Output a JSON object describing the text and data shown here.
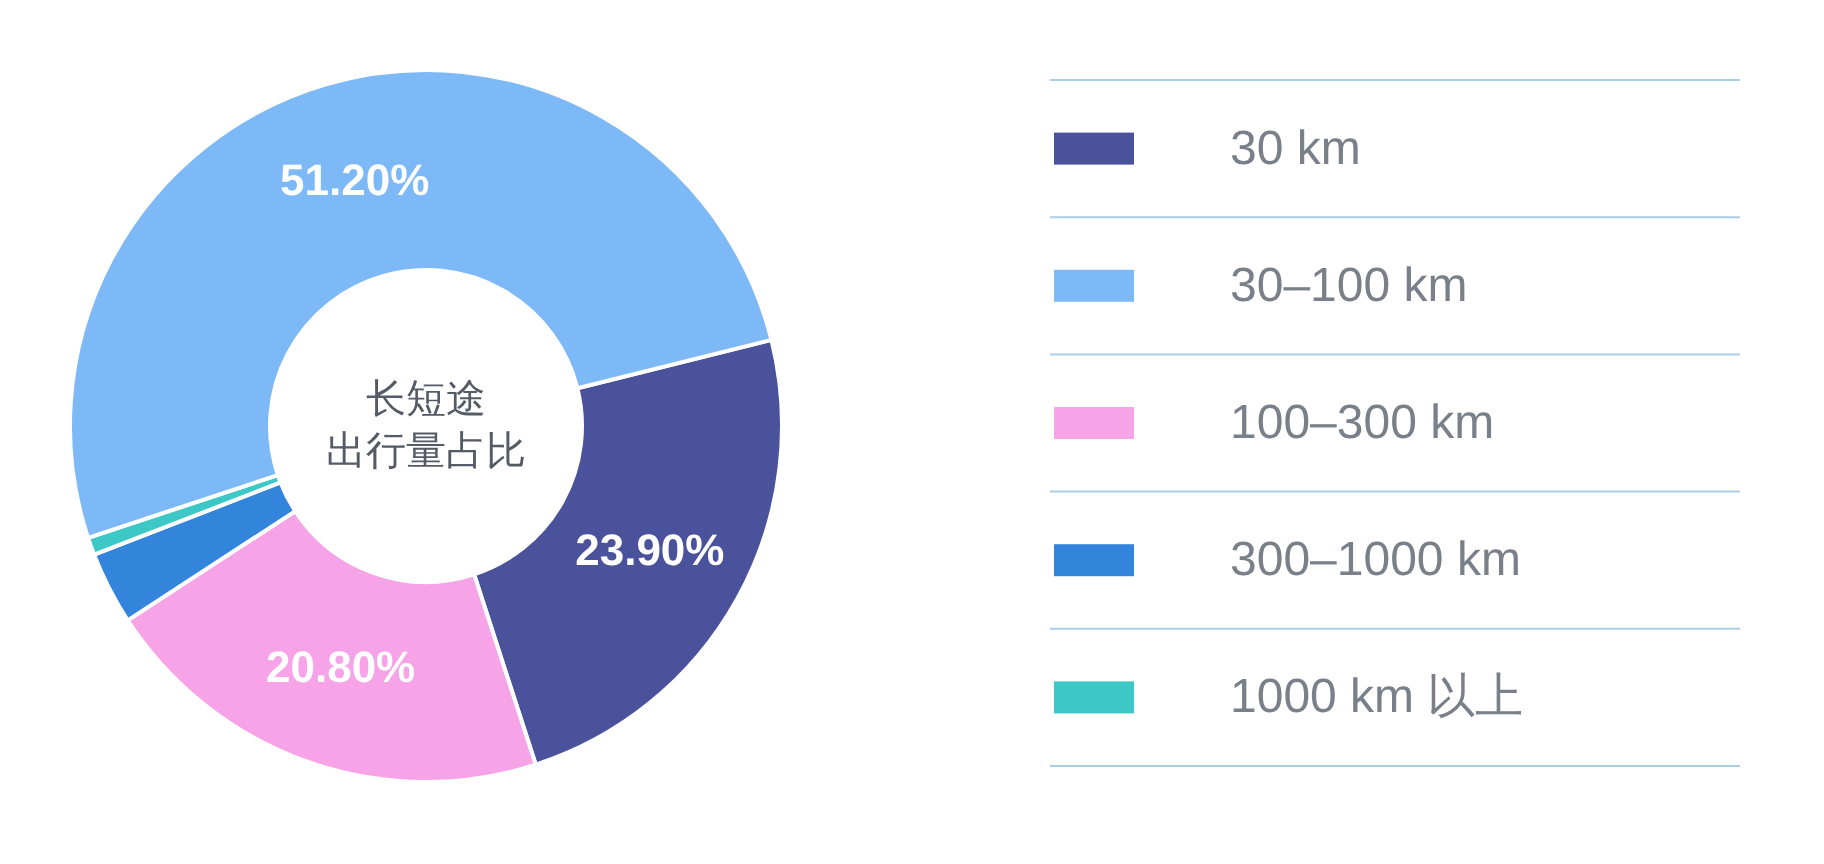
{
  "chart_data": {
    "type": "donut",
    "title": "长短途出行量占比",
    "categories": [
      "30 km",
      "30–100 km",
      "100–300 km",
      "300–1000 km",
      "1000 km 以上"
    ],
    "values": [
      23.9,
      51.2,
      20.8,
      3.3,
      0.8
    ],
    "colors": [
      "#4a529c",
      "#7db8f7",
      "#f7a3e8",
      "#3385dc",
      "#3cc8c6"
    ],
    "value_labels": [
      "23.90%",
      "51.20%",
      "20.80%",
      null,
      null
    ],
    "legend": "right"
  }
}
